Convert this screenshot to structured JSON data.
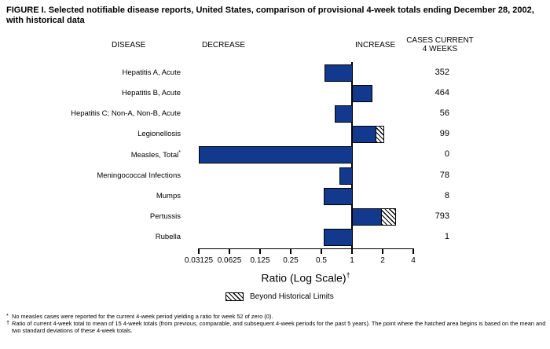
{
  "title": "FIGURE I. Selected notifiable disease reports, United States, comparison of provisional 4-week totals ending December 28, 2002,\nwith historical data",
  "headers": {
    "disease": "DISEASE",
    "decrease": "DECREASE",
    "increase": "INCREASE",
    "cases": "CASES CURRENT\n4 WEEKS"
  },
  "colors": {
    "bar_fill": "#12398d",
    "bar_border": "#000000",
    "axis": "#000000"
  },
  "chart_data": {
    "type": "bar",
    "orientation": "horizontal",
    "x_scale": "log2",
    "x_ticks": [
      0.03125,
      0.0625,
      0.125,
      0.25,
      0.5,
      1,
      2,
      4
    ],
    "x_tick_labels": [
      "0.03125",
      "0.0625",
      "0.125",
      "0.25",
      "0.5",
      "1",
      "2",
      "4"
    ],
    "xlabel": "Ratio (Log Scale)",
    "xlabel_sup": "†",
    "baseline_ratio": 1,
    "legend": {
      "label": "Beyond Historical Limits",
      "pattern": "diagonal-hatch"
    },
    "rows": [
      {
        "disease": "Hepatitis A, Acute",
        "footnote_marker": "",
        "ratio": 0.54,
        "beyond_from": null,
        "cases": "352"
      },
      {
        "disease": "Hepatitis B, Acute",
        "footnote_marker": "",
        "ratio": 1.58,
        "beyond_from": null,
        "cases": "464"
      },
      {
        "disease": "Hepatitis C; Non-A, Non-B, Acute",
        "footnote_marker": "",
        "ratio": 0.68,
        "beyond_from": null,
        "cases": "56"
      },
      {
        "disease": "Legionellosis",
        "footnote_marker": "",
        "ratio": 2.06,
        "beyond_from": 1.72,
        "cases": "99"
      },
      {
        "disease": "Measles, Total",
        "footnote_marker": "*",
        "ratio": 0,
        "beyond_from": null,
        "cases": "0"
      },
      {
        "disease": "Meningococcal Infections",
        "footnote_marker": "",
        "ratio": 0.75,
        "beyond_from": null,
        "cases": "78"
      },
      {
        "disease": "Mumps",
        "footnote_marker": "",
        "ratio": 0.53,
        "beyond_from": null,
        "cases": "8"
      },
      {
        "disease": "Pertussis",
        "footnote_marker": "",
        "ratio": 2.73,
        "beyond_from": 1.97,
        "cases": "793"
      },
      {
        "disease": "Rubella",
        "footnote_marker": "",
        "ratio": 0.53,
        "beyond_from": null,
        "cases": "1"
      }
    ]
  },
  "footnotes": [
    {
      "marker": "*",
      "text": "No measles cases were reported for the current 4-week period yielding a ratio for week 52 of zero (0)."
    },
    {
      "marker": "†",
      "text": "Ratio of current 4-week total to mean of 15 4-week totals (from previous, comparable, and subsequent 4-week periods for the past 5 years). The point where the hatched area begins is based on the mean and two standard deviations of these 4-week totals."
    }
  ]
}
